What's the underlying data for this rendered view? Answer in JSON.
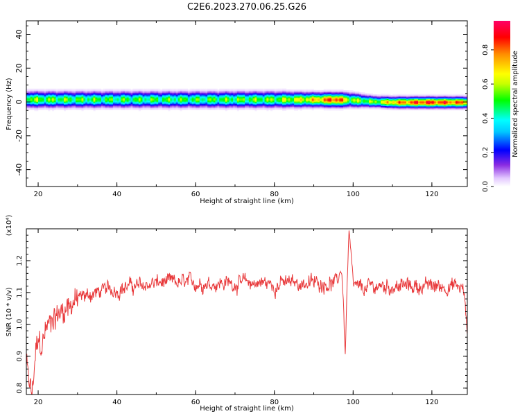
{
  "title": "C2E6.2023.270.06.25.G26",
  "chart_data": [
    {
      "type": "heatmap",
      "xlabel": "Height of straight line (km)",
      "ylabel": "Frequency (Hz)",
      "xlim": [
        17,
        129
      ],
      "ylim": [
        -50,
        48
      ],
      "xticks": [
        20,
        40,
        60,
        80,
        100,
        120
      ],
      "yticks": [
        40,
        20,
        0,
        -20,
        -40
      ],
      "colorbar": {
        "label": "Normalized spectral amplitude",
        "range": [
          0,
          0.97
        ],
        "ticks": [
          "0.0",
          "0.2",
          "0.4",
          "0.6",
          "0.8"
        ]
      },
      "band": [
        {
          "x": 17,
          "center": 1.2,
          "halfwidth": 5,
          "peak": 0.6
        },
        {
          "x": 20,
          "center": 1.2,
          "halfwidth": 5,
          "peak": 0.55
        },
        {
          "x": 30,
          "center": 1.2,
          "halfwidth": 5,
          "peak": 0.52
        },
        {
          "x": 40,
          "center": 1.2,
          "halfwidth": 5,
          "peak": 0.5
        },
        {
          "x": 60,
          "center": 1.2,
          "halfwidth": 5,
          "peak": 0.5
        },
        {
          "x": 80,
          "center": 1.2,
          "halfwidth": 5,
          "peak": 0.55
        },
        {
          "x": 90,
          "center": 1.1,
          "halfwidth": 4.5,
          "peak": 0.7
        },
        {
          "x": 96,
          "center": 1.0,
          "halfwidth": 4.5,
          "peak": 0.9
        },
        {
          "x": 99,
          "center": 1.0,
          "halfwidth": 4.5,
          "peak": 0.6
        },
        {
          "x": 105,
          "center": 0.0,
          "halfwidth": 3.5,
          "peak": 0.55
        },
        {
          "x": 110,
          "center": -0.5,
          "halfwidth": 3.5,
          "peak": 0.75
        },
        {
          "x": 118,
          "center": -0.5,
          "halfwidth": 3.5,
          "peak": 0.9
        },
        {
          "x": 124,
          "center": -0.5,
          "halfwidth": 3.5,
          "peak": 0.85
        },
        {
          "x": 129,
          "center": -0.5,
          "halfwidth": 3.5,
          "peak": 0.8
        }
      ]
    },
    {
      "type": "line",
      "xlabel": "Height of straight line (km)",
      "ylabel": "SNR (10 * v/v)",
      "yscale_label": "(x10⁴)",
      "xlim": [
        17,
        129
      ],
      "ylim": [
        0.78,
        1.3
      ],
      "xticks": [
        20,
        40,
        60,
        80,
        100,
        120
      ],
      "yticks": [
        "0.8",
        "0.9",
        "1.0",
        "1.1",
        "1.2"
      ],
      "color": "#e8383a",
      "series": [
        {
          "x": [
            17,
            17.5,
            18,
            18.5,
            19,
            19.5,
            20,
            21,
            22,
            23,
            24,
            25,
            26,
            28,
            30,
            32,
            35,
            38,
            40,
            43,
            46,
            50,
            54,
            58,
            62,
            66,
            70,
            74,
            78,
            80,
            82,
            86,
            90,
            94,
            96,
            97,
            97.5,
            98,
            98.5,
            99,
            99.5,
            100,
            102,
            106,
            110,
            114,
            118,
            122,
            126,
            128,
            129
          ],
          "y": [
            0.88,
            0.83,
            0.8,
            0.78,
            0.86,
            0.92,
            0.95,
            0.93,
            0.99,
            1.0,
            1.02,
            1.03,
            1.04,
            1.06,
            1.08,
            1.09,
            1.1,
            1.11,
            1.11,
            1.12,
            1.12,
            1.13,
            1.13,
            1.13,
            1.13,
            1.13,
            1.13,
            1.13,
            1.13,
            1.12,
            1.13,
            1.13,
            1.13,
            1.13,
            1.13,
            1.18,
            1.08,
            0.9,
            1.14,
            1.29,
            1.2,
            1.12,
            1.11,
            1.12,
            1.12,
            1.12,
            1.12,
            1.12,
            1.12,
            1.11,
            0.98
          ]
        }
      ]
    }
  ]
}
